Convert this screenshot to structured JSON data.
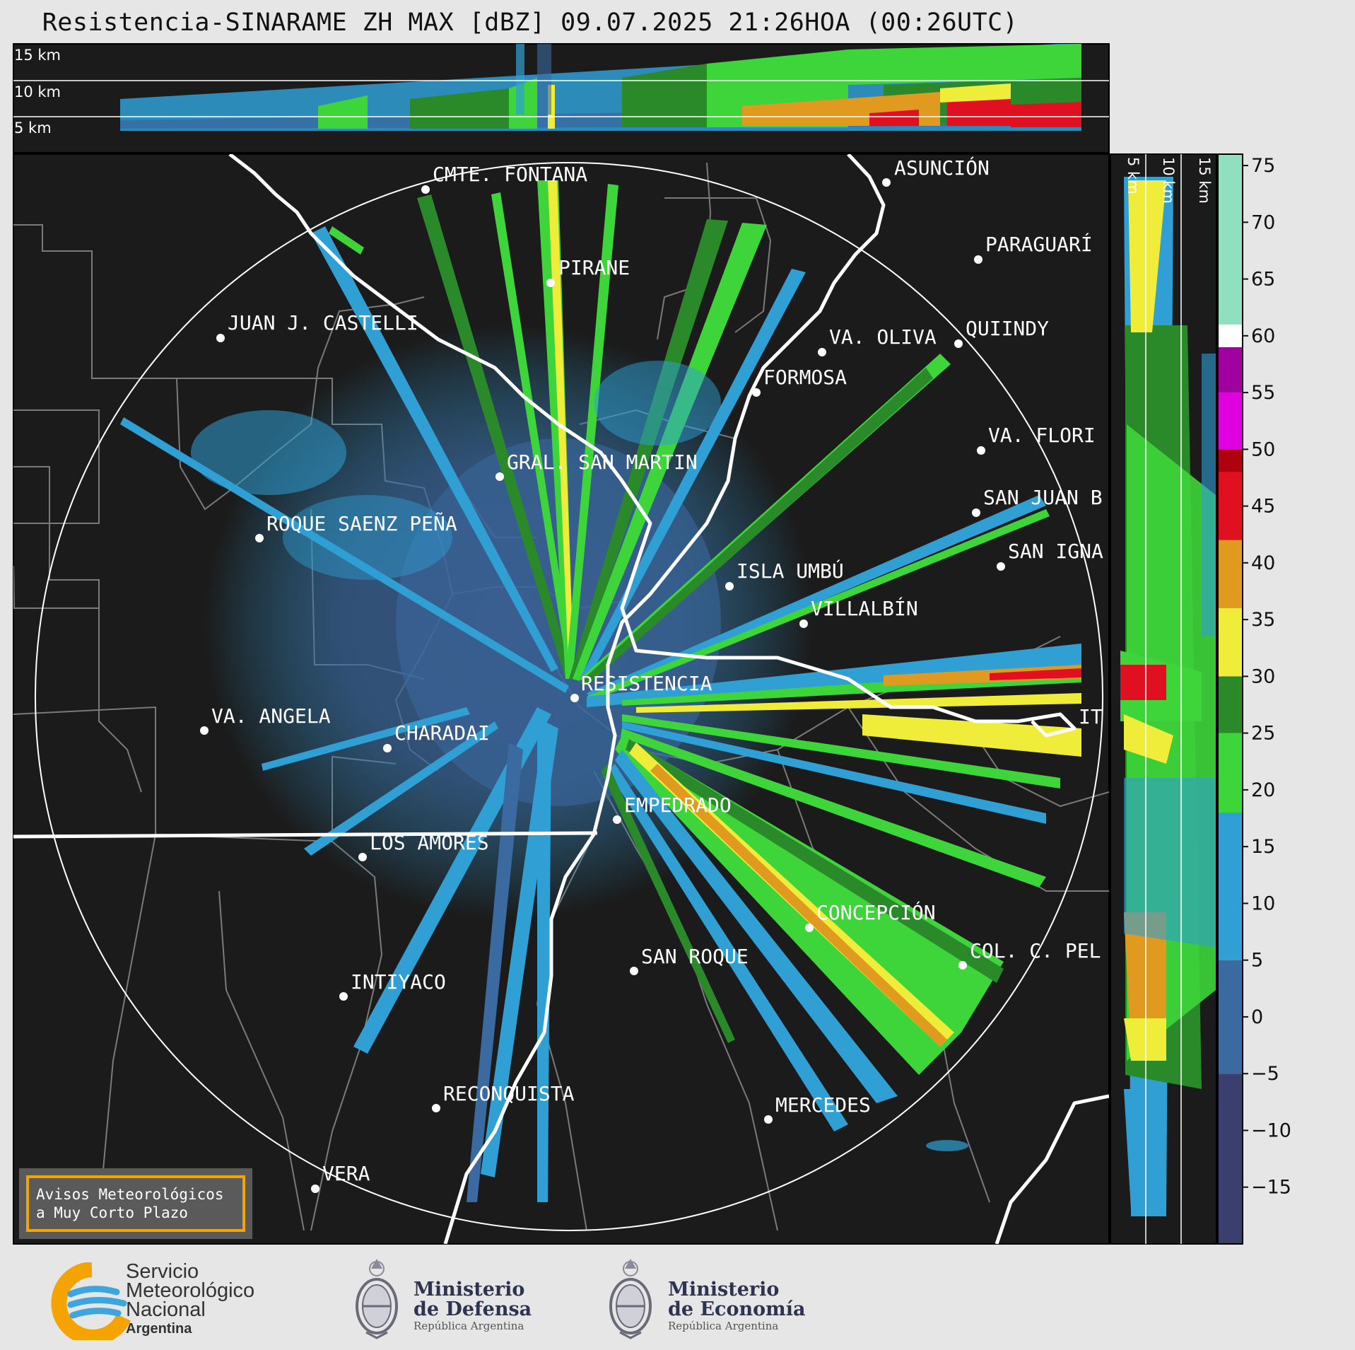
{
  "title": "Resistencia-SINARAME ZH MAX [dBZ] 09.07.2025 21:26HOA (00:26UTC)",
  "top_panel": {
    "height_labels": [
      "15 km",
      "10 km",
      "5 km"
    ]
  },
  "side_panel": {
    "height_labels": [
      "5 km",
      "10 km",
      "15 km"
    ]
  },
  "cities": [
    {
      "name": "CMTE. FONTANA",
      "id": "cmte-fontana"
    },
    {
      "name": "ASUNCIÓN",
      "id": "asuncion"
    },
    {
      "name": "PARAGUARÍ",
      "id": "paraguari"
    },
    {
      "name": "PIRANE",
      "id": "pirane"
    },
    {
      "name": "JUAN J. CASTELLI",
      "id": "juan-j-castelli"
    },
    {
      "name": "QUIINDY",
      "id": "quiindy"
    },
    {
      "name": "VA. OLIVA",
      "id": "va-oliva"
    },
    {
      "name": "FORMOSA",
      "id": "formosa"
    },
    {
      "name": "VA. FLORI",
      "id": "va-florida"
    },
    {
      "name": "GRAL. SAN MARTIN",
      "id": "gral-san-martin"
    },
    {
      "name": "SAN JUAN B",
      "id": "san-juan-b"
    },
    {
      "name": "ROQUE SAENZ PEÑA",
      "id": "roque-saenz-pena"
    },
    {
      "name": "SAN IGNA",
      "id": "san-ignacio"
    },
    {
      "name": "ISLA UMBÚ",
      "id": "isla-umbu"
    },
    {
      "name": "VILLALBÍN",
      "id": "villalbin"
    },
    {
      "name": "RESISTENCIA",
      "id": "resistencia"
    },
    {
      "name": "VA. ANGELA",
      "id": "va-angela"
    },
    {
      "name": "CHARADAI",
      "id": "charadai"
    },
    {
      "name": "IT",
      "id": "itati"
    },
    {
      "name": "EMPEDRADO",
      "id": "empedrado"
    },
    {
      "name": "LOS AMORES",
      "id": "los-amores"
    },
    {
      "name": "CONCEPCIÓN",
      "id": "concepcion"
    },
    {
      "name": "COL. C. PEL",
      "id": "col-c-pellegrini"
    },
    {
      "name": "SAN ROQUE",
      "id": "san-roque"
    },
    {
      "name": "INTIYACO",
      "id": "intiyaco"
    },
    {
      "name": "RECONQUISTA",
      "id": "reconquista"
    },
    {
      "name": "MERCEDES",
      "id": "mercedes"
    },
    {
      "name": "VERA",
      "id": "vera"
    }
  ],
  "colorbar": {
    "unit": "dBZ",
    "ticks": [
      "75",
      "70",
      "65",
      "60",
      "55",
      "50",
      "45",
      "40",
      "35",
      "30",
      "25",
      "20",
      "15",
      "10",
      "5",
      "0",
      "−5",
      "−10",
      "−15"
    ],
    "min": -20,
    "max": 76,
    "bands": [
      {
        "from": -20,
        "to": -5,
        "color": "#3b3f6e"
      },
      {
        "from": -5,
        "to": 5,
        "color": "#3a6aa0"
      },
      {
        "from": 5,
        "to": 18,
        "color": "#2f9fd4"
      },
      {
        "from": 18,
        "to": 25,
        "color": "#3ed53a"
      },
      {
        "from": 25,
        "to": 30,
        "color": "#2a8a2a"
      },
      {
        "from": 30,
        "to": 36,
        "color": "#f0ec3a"
      },
      {
        "from": 36,
        "to": 42,
        "color": "#e09a20"
      },
      {
        "from": 42,
        "to": 48,
        "color": "#e01020"
      },
      {
        "from": 48,
        "to": 50,
        "color": "#b00010"
      },
      {
        "from": 50,
        "to": 55,
        "color": "#e000e0"
      },
      {
        "from": 55,
        "to": 59,
        "color": "#a000a0"
      },
      {
        "from": 59,
        "to": 61,
        "color": "#ffffff"
      },
      {
        "from": 61,
        "to": 76,
        "color": "#90e0c0"
      }
    ]
  },
  "warning_box": {
    "line1": "Avisos Meteorológicos",
    "line2": "a Muy Corto Plazo"
  },
  "footer": {
    "smn": {
      "line1": "Servicio",
      "line2": "Meteorológico",
      "line3": "Nacional",
      "line4": "Argentina"
    },
    "defensa": {
      "line1": "Ministerio",
      "line2": "de Defensa",
      "line3": "República Argentina"
    },
    "economia": {
      "line1": "Ministerio",
      "line2": "de Economía",
      "line3": "República Argentina"
    }
  },
  "colors": {
    "map_bg": "#1b1b1b",
    "border": "#ffffff",
    "province": "#7a7a7a",
    "echo_weak": "#2f9fd4",
    "echo_green": "#3ed53a",
    "echo_dark_green": "#2a8a2a",
    "echo_yellow": "#f0ec3a",
    "echo_orange": "#e09a20",
    "echo_red": "#e01020"
  }
}
